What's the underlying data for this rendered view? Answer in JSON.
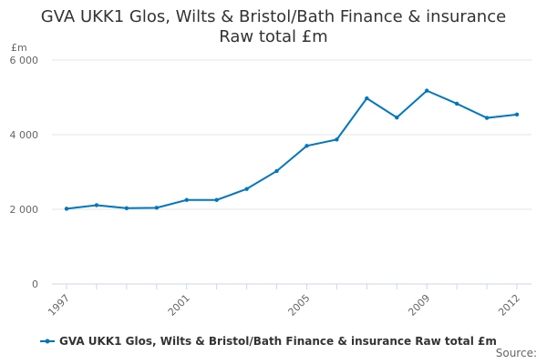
{
  "chart_data": {
    "type": "line",
    "title": "GVA UKK1 Glos, Wilts & Bristol/Bath Finance & insurance",
    "subtitle": "Raw total £m",
    "ylabel": "£m",
    "xlabel": "",
    "x": [
      1997,
      1998,
      1999,
      2000,
      2001,
      2002,
      2003,
      2004,
      2005,
      2006,
      2007,
      2008,
      2009,
      2010,
      2011,
      2012
    ],
    "x_tick_labels": [
      "1997",
      "2001",
      "2005",
      "2009",
      "2012"
    ],
    "y_tick_labels": [
      "0",
      "2 000",
      "4 000",
      "6 000"
    ],
    "ylim": [
      0,
      6000
    ],
    "grid": true,
    "legend_position": "bottom",
    "series": [
      {
        "name": "GVA UKK1 Glos, Wilts & Bristol/Bath Finance & insurance Raw total £m",
        "color": "#0077c0",
        "values": [
          2015,
          2110,
          2030,
          2040,
          2250,
          2250,
          2545,
          3025,
          3700,
          3870,
          4975,
          4460,
          5180,
          4830,
          4450,
          4540
        ]
      }
    ]
  },
  "source_label": "Source:"
}
